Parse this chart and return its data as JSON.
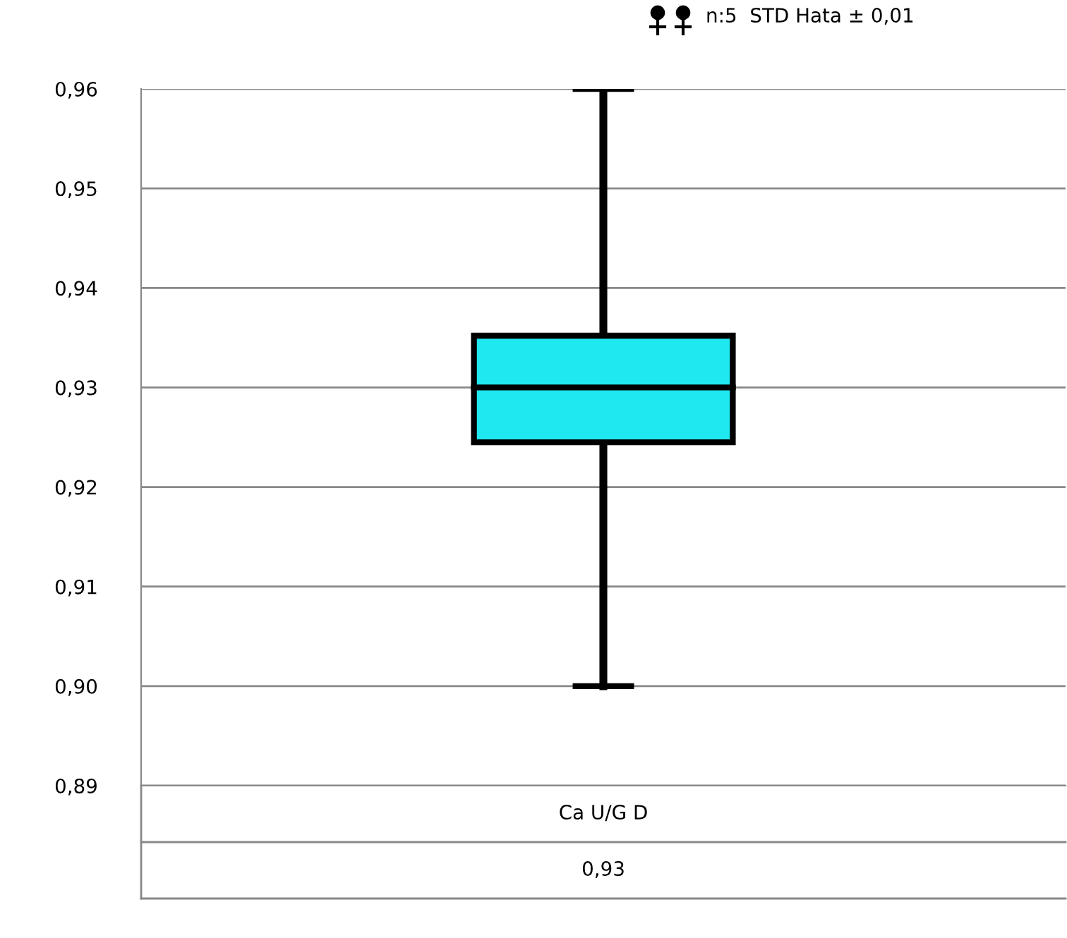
{
  "chart_data": {
    "type": "box",
    "categories": [
      "Ca U/G D"
    ],
    "boxes": [
      {
        "low": 0.9,
        "q1": 0.9245,
        "median": 0.93,
        "q3": 0.9352,
        "high": 0.96
      }
    ],
    "color": "#20e8f0",
    "ylim": [
      0.89,
      0.96
    ],
    "yticks": [
      {
        "value": 0.89,
        "label": "0,89"
      },
      {
        "value": 0.9,
        "label": "0,90"
      },
      {
        "value": 0.91,
        "label": "0,91"
      },
      {
        "value": 0.92,
        "label": "0,92"
      },
      {
        "value": 0.93,
        "label": "0,93"
      },
      {
        "value": 0.94,
        "label": "0,94"
      },
      {
        "value": 0.95,
        "label": "0,95"
      },
      {
        "value": 0.96,
        "label": "0,96"
      }
    ],
    "grid": "y",
    "annotations": [
      "n:5  STD Hata ± 0,01",
      "0,93"
    ]
  }
}
